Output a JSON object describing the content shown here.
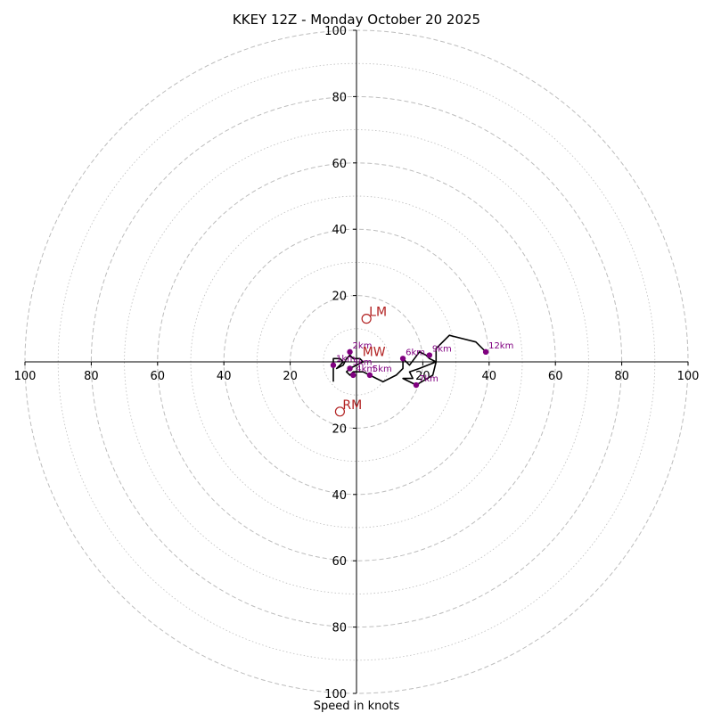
{
  "chart_data": {
    "type": "line",
    "title": "KKEY 12Z - Monday October 20 2025",
    "xlabel": "Speed in knots",
    "max_speed": 100,
    "ring_major_step": 20,
    "ring_minor_step": 10,
    "tick_values": [
      20,
      40,
      60,
      80,
      100
    ],
    "colors": {
      "hodograph": "#000000",
      "markers": "#800080",
      "storm_motion": "#b22222",
      "ring": "#bdbdbd",
      "axis": "#000000"
    },
    "hodograph_uv": [
      [
        -7,
        -6
      ],
      [
        -7,
        1
      ],
      [
        -5,
        1
      ],
      [
        -4,
        0
      ],
      [
        -6,
        -2
      ],
      [
        -4,
        -1
      ],
      [
        -3,
        1
      ],
      [
        -2,
        2
      ],
      [
        -1,
        1
      ],
      [
        1,
        1
      ],
      [
        2,
        0
      ],
      [
        -2,
        -2
      ],
      [
        -3,
        -3
      ],
      [
        -2,
        -4
      ],
      [
        -1,
        -3
      ],
      [
        1,
        -3
      ],
      [
        2,
        -3
      ],
      [
        4,
        -4
      ],
      [
        6,
        -5
      ],
      [
        8,
        -6
      ],
      [
        12,
        -4
      ],
      [
        14,
        -2
      ],
      [
        14,
        1
      ],
      [
        16,
        -1
      ],
      [
        19,
        3
      ],
      [
        21,
        2
      ],
      [
        22,
        1
      ],
      [
        24,
        0
      ],
      [
        19,
        -2
      ],
      [
        16,
        -3
      ],
      [
        17,
        -5
      ],
      [
        14,
        -5
      ],
      [
        18,
        -7
      ],
      [
        23,
        -4
      ],
      [
        24,
        0
      ],
      [
        24,
        4
      ],
      [
        28,
        8
      ],
      [
        36,
        6
      ],
      [
        39,
        3
      ]
    ],
    "height_markers": [
      {
        "label": "1km",
        "u": -7,
        "v": -1
      },
      {
        "label": "2km",
        "u": -2,
        "v": 3
      },
      {
        "label": "3km",
        "u": -2,
        "v": -2
      },
      {
        "label": "4km",
        "u": -1,
        "v": -4
      },
      {
        "label": "5km",
        "u": 4,
        "v": -4
      },
      {
        "label": "6km",
        "u": 14,
        "v": 1
      },
      {
        "label": "7km",
        "u": 18,
        "v": -7
      },
      {
        "label": "9km",
        "u": 22,
        "v": 2
      },
      {
        "label": "12km",
        "u": 39,
        "v": 3
      }
    ],
    "storm_motion": [
      {
        "label": "LM",
        "u": 3,
        "v": 13
      },
      {
        "label": "RM",
        "u": -5,
        "v": -15
      },
      {
        "label": "MW",
        "u": 1,
        "v": 1
      }
    ]
  }
}
